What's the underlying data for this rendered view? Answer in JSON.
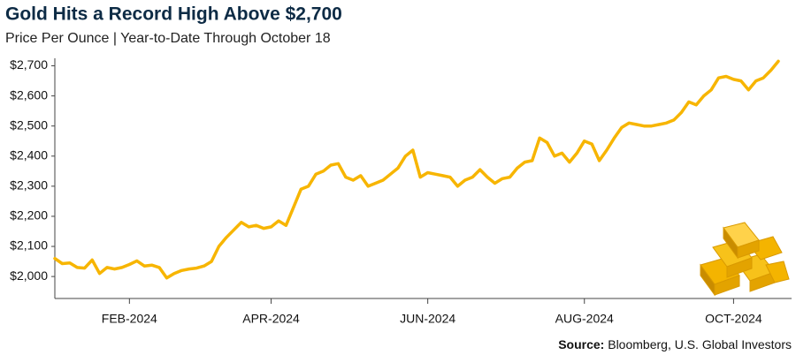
{
  "chart_data": {
    "type": "line",
    "title": "Gold Hits a Record High Above $2,700",
    "subtitle": "Price Per Ounce | Year-to-Date Through October 18",
    "source_label": "Source:",
    "source": "Bloomberg, U.S. Global Investors",
    "color": "#f7b500",
    "categories": [
      null,
      null,
      null,
      null,
      null,
      null,
      null,
      null,
      null,
      null,
      "FEB-2024",
      null,
      null,
      null,
      null,
      null,
      null,
      null,
      null,
      null,
      null,
      null,
      null,
      null,
      null,
      null,
      null,
      null,
      null,
      "APR-2024",
      null,
      null,
      null,
      null,
      null,
      null,
      null,
      null,
      null,
      null,
      null,
      null,
      null,
      null,
      null,
      null,
      null,
      null,
      null,
      null,
      "JUN-2024",
      null,
      null,
      null,
      null,
      null,
      null,
      null,
      null,
      null,
      null,
      null,
      null,
      null,
      null,
      null,
      null,
      null,
      null,
      null,
      null,
      "AUG-2024",
      null,
      null,
      null,
      null,
      null,
      null,
      null,
      null,
      null,
      null,
      null,
      null,
      null,
      null,
      null,
      null,
      null,
      null,
      null,
      "OCT-2024",
      null,
      null,
      null,
      null,
      null,
      null
    ],
    "values": [
      2060,
      2043,
      2045,
      2030,
      2028,
      2055,
      2010,
      2030,
      2025,
      2030,
      2040,
      2052,
      2035,
      2038,
      2030,
      1995,
      2010,
      2020,
      2025,
      2028,
      2035,
      2050,
      2100,
      2130,
      2155,
      2180,
      2165,
      2170,
      2160,
      2165,
      2185,
      2170,
      2230,
      2290,
      2300,
      2340,
      2350,
      2370,
      2375,
      2330,
      2320,
      2335,
      2300,
      2310,
      2320,
      2340,
      2360,
      2400,
      2420,
      2330,
      2345,
      2340,
      2335,
      2330,
      2300,
      2320,
      2330,
      2355,
      2330,
      2310,
      2325,
      2330,
      2360,
      2380,
      2385,
      2460,
      2445,
      2400,
      2410,
      2380,
      2410,
      2450,
      2440,
      2385,
      2420,
      2460,
      2495,
      2510,
      2505,
      2500,
      2500,
      2505,
      2510,
      2520,
      2545,
      2580,
      2570,
      2600,
      2620,
      2660,
      2665,
      2655,
      2650,
      2620,
      2650,
      2660,
      2685,
      2715
    ],
    "ylim": [
      1927,
      2725
    ],
    "yticks": [
      {
        "value": 2000,
        "label": "$2,000"
      },
      {
        "value": 2100,
        "label": "$2,100"
      },
      {
        "value": 2200,
        "label": "$2,200"
      },
      {
        "value": 2300,
        "label": "$2,300"
      },
      {
        "value": 2400,
        "label": "$2,400"
      },
      {
        "value": 2500,
        "label": "$2,500"
      },
      {
        "value": 2600,
        "label": "$2,600"
      },
      {
        "value": 2700,
        "label": "$2,700"
      }
    ],
    "grid": false
  }
}
